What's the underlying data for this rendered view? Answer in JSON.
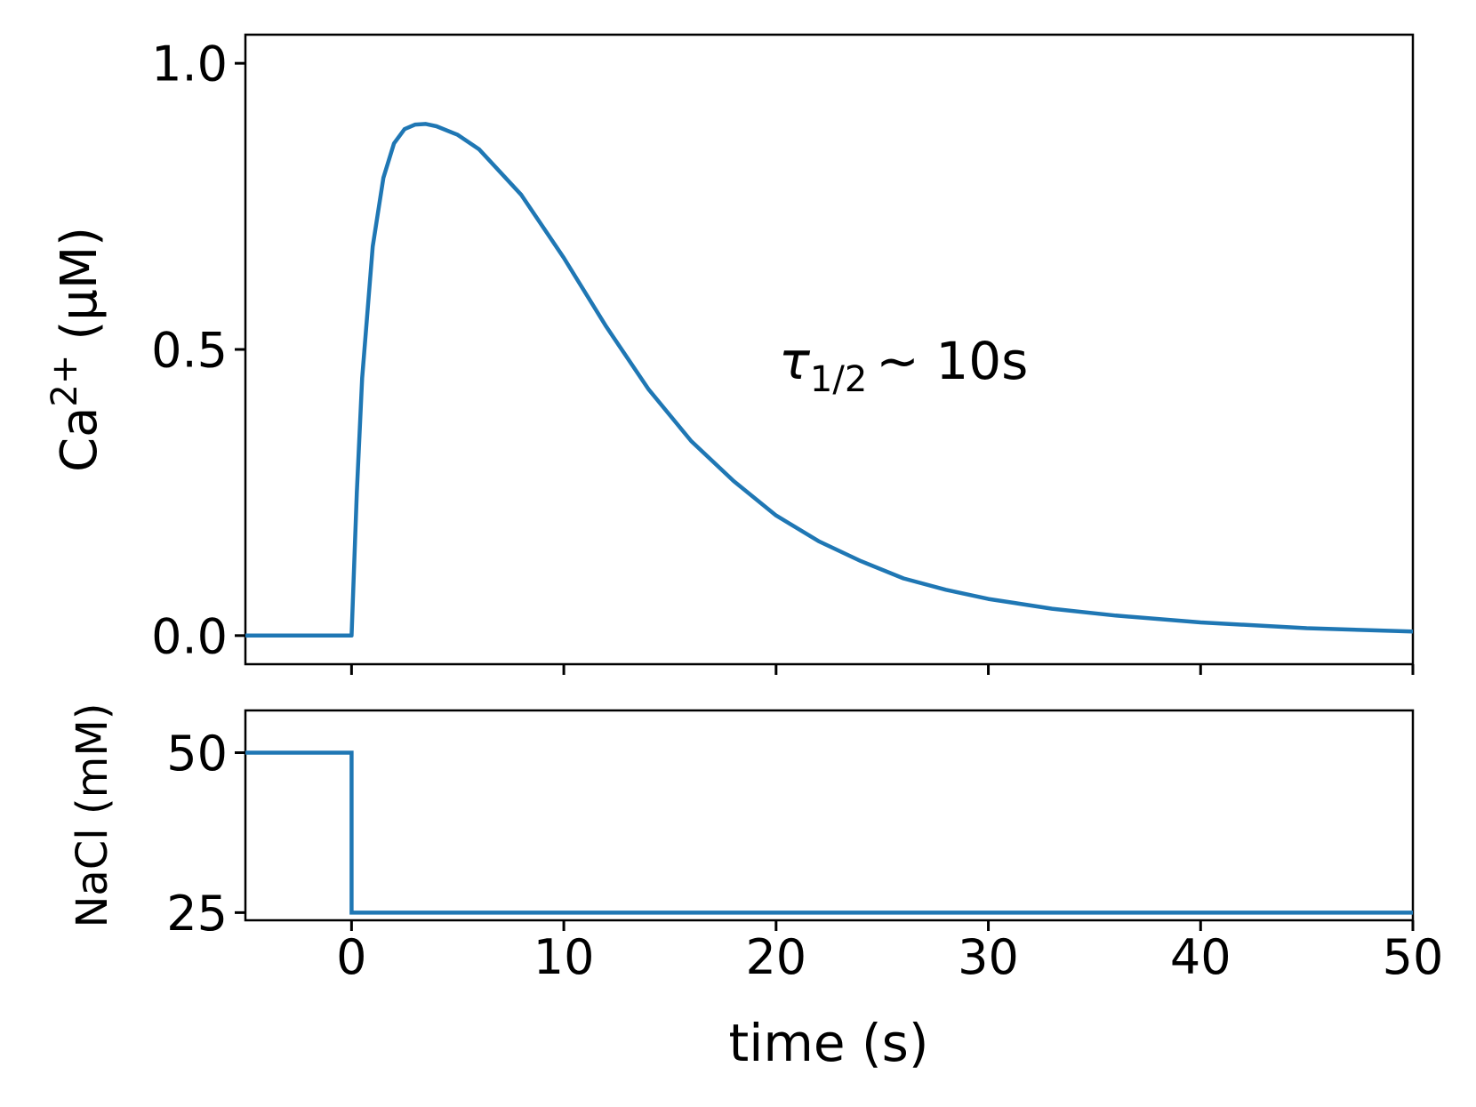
{
  "chart_data": [
    {
      "type": "line",
      "title": "",
      "xlabel": "",
      "ylabel": "Ca2+ (μM)",
      "ylabel_parts": {
        "base": "Ca",
        "sup": "2+",
        "unit": "(μM)"
      },
      "xlim": [
        -5,
        50
      ],
      "ylim": [
        -0.05,
        1.05
      ],
      "yticks": [
        0.0,
        0.5,
        1.0
      ],
      "ytick_labels": [
        "0.0",
        "0.5",
        "1.0"
      ],
      "xticks": [
        0,
        10,
        20,
        30,
        40,
        50
      ],
      "grid": false,
      "annotation": {
        "text_main": "τ",
        "text_sub": "1/2",
        "text_rest": "~ 10s",
        "x": 20.3,
        "y": 0.48
      },
      "series": [
        {
          "name": "Ca2+",
          "color": "#1f77b4",
          "x": [
            -5,
            0,
            0.25,
            0.5,
            1,
            1.5,
            2,
            2.5,
            3,
            3.5,
            4,
            5,
            6,
            8,
            10,
            12,
            14,
            16,
            18,
            20,
            22,
            24,
            26,
            28,
            30,
            33,
            36,
            40,
            45,
            50
          ],
          "y": [
            0,
            0,
            0.25,
            0.45,
            0.68,
            0.8,
            0.86,
            0.885,
            0.893,
            0.894,
            0.89,
            0.875,
            0.85,
            0.77,
            0.66,
            0.54,
            0.43,
            0.34,
            0.27,
            0.21,
            0.165,
            0.13,
            0.1,
            0.08,
            0.064,
            0.047,
            0.035,
            0.023,
            0.013,
            0.007
          ]
        }
      ]
    },
    {
      "type": "line",
      "title": "",
      "xlabel": "time (s)",
      "ylabel": "NaCl (mM)",
      "xlim": [
        -5,
        50
      ],
      "ylim": [
        23.8,
        56.6
      ],
      "yticks": [
        25,
        50
      ],
      "ytick_labels": [
        "25",
        "50"
      ],
      "xticks": [
        0,
        10,
        20,
        30,
        40,
        50
      ],
      "xtick_labels": [
        "0",
        "10",
        "20",
        "30",
        "40",
        "50"
      ],
      "grid": false,
      "series": [
        {
          "name": "NaCl",
          "color": "#1f77b4",
          "x": [
            -5,
            0,
            0,
            50
          ],
          "y": [
            50,
            50,
            25,
            25
          ]
        }
      ]
    }
  ]
}
